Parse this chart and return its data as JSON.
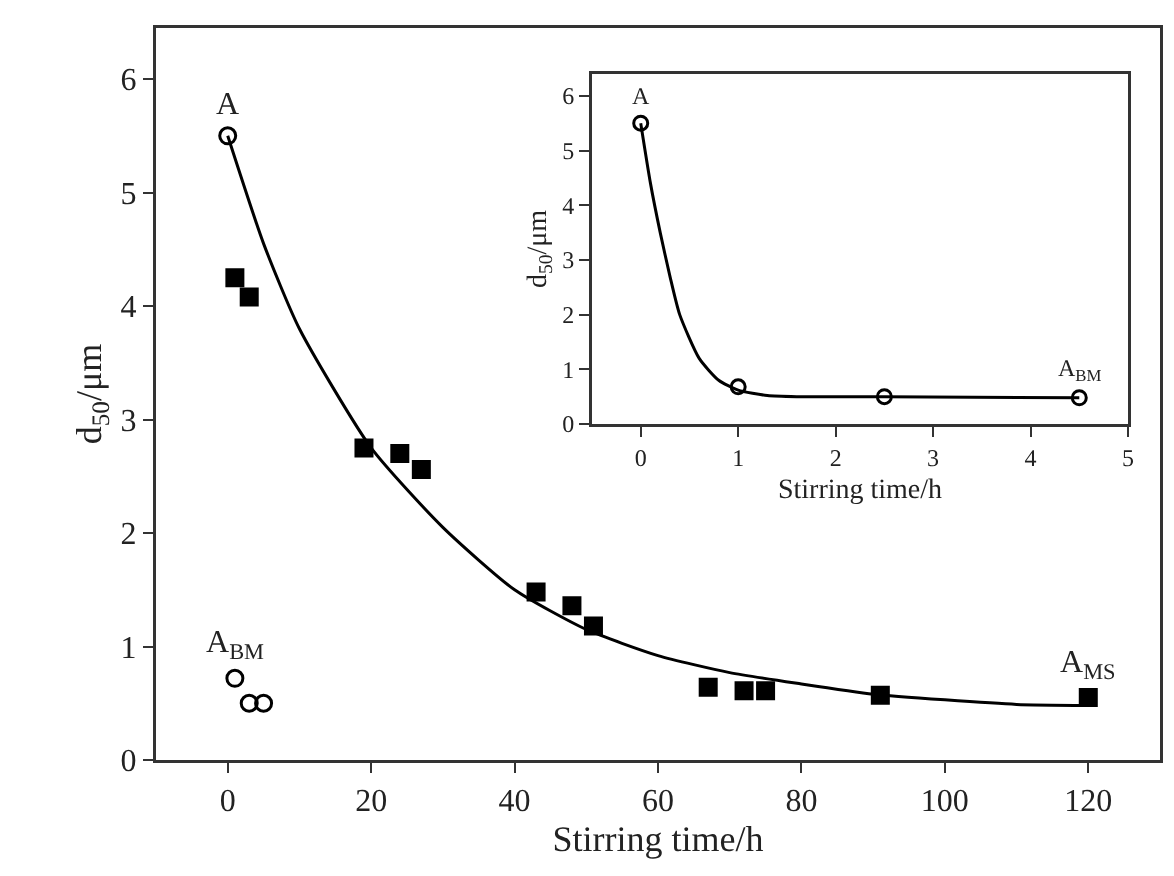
{
  "chart_data": [
    {
      "type": "scatter",
      "xlabel": "Stirring time/h",
      "ylabel": "d$_{50}$/μm",
      "xlim": [
        -10,
        130
      ],
      "ylim": [
        0,
        6.45
      ],
      "xticks": [
        0,
        20,
        40,
        60,
        80,
        100,
        120
      ],
      "yticks": [
        0,
        1,
        2,
        3,
        4,
        5,
        6
      ],
      "grid": false,
      "series": [
        {
          "marker": "square",
          "color": "#000000",
          "x": [
            1,
            3,
            19,
            24,
            27,
            43,
            48,
            51,
            67,
            72,
            75,
            91,
            120
          ],
          "values": [
            4.25,
            4.08,
            2.75,
            2.7,
            2.56,
            1.48,
            1.36,
            1.18,
            0.64,
            0.61,
            0.61,
            0.57,
            0.55
          ]
        },
        {
          "marker": "circle",
          "color": "#000000",
          "x": [
            0,
            1,
            3,
            5
          ],
          "values": [
            5.5,
            0.72,
            0.5,
            0.5
          ]
        },
        {
          "type": "line",
          "marker": "none",
          "color": "#000000",
          "x": [
            0,
            5,
            10,
            20,
            30,
            40,
            50,
            60,
            70,
            80,
            90,
            100,
            110,
            120
          ],
          "values": [
            5.5,
            4.55,
            3.8,
            2.75,
            2.05,
            1.5,
            1.15,
            0.92,
            0.77,
            0.67,
            0.58,
            0.53,
            0.49,
            0.48
          ]
        }
      ],
      "annotations": [
        {
          "text": "A",
          "x": 0,
          "y": 5.5
        },
        {
          "text": "A$_{BM}$",
          "x": 1,
          "y": 0.72
        },
        {
          "text": "A$_{MS}$",
          "x": 120,
          "y": 0.55
        }
      ]
    },
    {
      "type": "scatter",
      "xlabel": "Stirring time/h",
      "ylabel": "d$_{50}$/μm",
      "xlim": [
        -0.5,
        5
      ],
      "ylim": [
        0,
        6.4
      ],
      "xticks": [
        0,
        1,
        2,
        3,
        4,
        5
      ],
      "yticks": [
        0,
        1,
        2,
        3,
        4,
        5,
        6
      ],
      "grid": false,
      "series": [
        {
          "type": "line",
          "marker": "none",
          "color": "#000000",
          "x": [
            0,
            0.1,
            0.2,
            0.3,
            0.4,
            0.6,
            0.8,
            1,
            1.3,
            1.6,
            2.5,
            4.5
          ],
          "values": [
            5.5,
            4.4,
            3.5,
            2.7,
            2.0,
            1.2,
            0.8,
            0.62,
            0.52,
            0.5,
            0.5,
            0.48
          ]
        },
        {
          "marker": "circle",
          "color": "#000000",
          "x": [
            0,
            1,
            2.5,
            4.5
          ],
          "values": [
            5.5,
            0.68,
            0.5,
            0.48
          ]
        }
      ],
      "annotations": [
        {
          "text": "A",
          "x": 0,
          "y": 5.5
        },
        {
          "text": "A$_{BM}$",
          "x": 4.5,
          "y": 0.48
        }
      ]
    }
  ]
}
